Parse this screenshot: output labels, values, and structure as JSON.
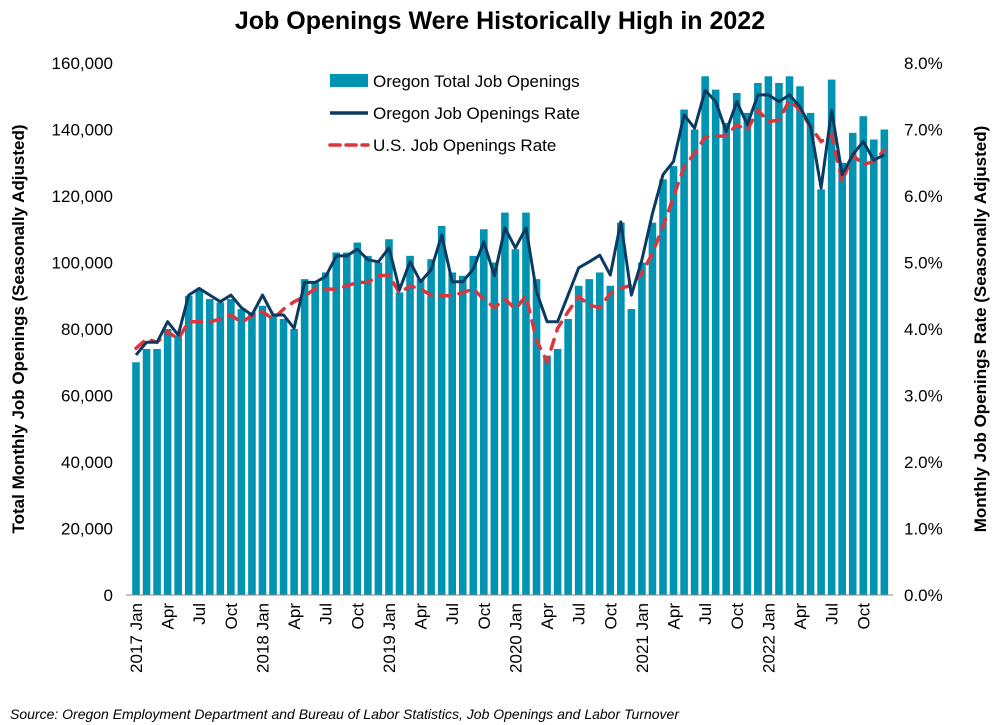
{
  "chart_data": {
    "type": "bar+line",
    "title": "Job Openings Were Historically High in 2022",
    "ylabel_left": "Total Monthly Job Openings (Seasonally Adjusted)",
    "ylabel_right": "Monthly Job Openings Rate (Seasonally Adjusted)",
    "ylim_left": [
      0,
      160000
    ],
    "ylim_right": [
      0,
      8
    ],
    "yticks_left": [
      "0",
      "20,000",
      "40,000",
      "60,000",
      "80,000",
      "100,000",
      "120,000",
      "140,000",
      "160,000"
    ],
    "yticks_right": [
      "0.0%",
      "1.0%",
      "2.0%",
      "3.0%",
      "4.0%",
      "5.0%",
      "6.0%",
      "7.0%",
      "8.0%"
    ],
    "xtick_labels": [
      "2017 Jan",
      "Apr",
      "Jul",
      "Oct",
      "2018 Jan",
      "Apr",
      "Jul",
      "Oct",
      "2019 Jan",
      "Apr",
      "Jul",
      "Oct",
      "2020 Jan",
      "Apr",
      "Jul",
      "Oct",
      "2021 Jan",
      "Apr",
      "Jul",
      "Oct",
      "2022 Jan",
      "Apr",
      "Jul",
      "Oct"
    ],
    "legend": "top-center",
    "grid": false,
    "colors": {
      "bars": "#0093b2",
      "oregon_rate": "#0b3a63",
      "us_rate": "#d9363e"
    },
    "series": [
      {
        "name": "Oregon Total Job Openings",
        "type": "bar",
        "axis": "left",
        "values": [
          70000,
          74000,
          74000,
          80000,
          78000,
          90000,
          92000,
          89000,
          88000,
          89000,
          86000,
          85000,
          87000,
          84000,
          83000,
          80000,
          95000,
          94000,
          97000,
          103000,
          103000,
          106000,
          102000,
          100000,
          107000,
          91000,
          102000,
          95000,
          101000,
          111000,
          97000,
          96000,
          102000,
          110000,
          100000,
          115000,
          104000,
          115000,
          95000,
          72000,
          74000,
          83000,
          93000,
          95000,
          97000,
          93000,
          112000,
          86000,
          100000,
          112000,
          125000,
          129000,
          146000,
          140000,
          156000,
          152000,
          142000,
          151000,
          145000,
          154000,
          156000,
          154000,
          156000,
          153000,
          145000,
          122000,
          155000,
          130000,
          139000,
          144000,
          137000,
          140000
        ]
      },
      {
        "name": "Oregon Job Openings Rate",
        "type": "line",
        "axis": "right",
        "values": [
          3.61,
          3.8,
          3.8,
          4.11,
          3.91,
          4.51,
          4.61,
          4.51,
          4.41,
          4.51,
          4.32,
          4.21,
          4.51,
          4.21,
          4.21,
          4.01,
          4.7,
          4.7,
          4.79,
          5.1,
          5.1,
          5.2,
          5.04,
          5.01,
          5.22,
          4.59,
          5.01,
          4.71,
          4.89,
          5.41,
          4.71,
          4.71,
          4.9,
          5.31,
          4.8,
          5.52,
          5.22,
          5.52,
          4.56,
          4.11,
          4.11,
          4.51,
          4.92,
          5.01,
          5.11,
          4.81,
          5.61,
          4.51,
          5.04,
          5.74,
          6.32,
          6.52,
          7.22,
          7.02,
          7.59,
          7.42,
          6.97,
          7.42,
          7.07,
          7.52,
          7.52,
          7.42,
          7.52,
          7.34,
          7.04,
          6.12,
          7.29,
          6.32,
          6.62,
          6.82,
          6.54,
          6.62
        ]
      },
      {
        "name": "U.S. Job Openings Rate",
        "type": "line",
        "dashed": true,
        "axis": "right",
        "values": [
          3.71,
          3.85,
          3.8,
          3.96,
          3.85,
          4.11,
          4.11,
          4.11,
          4.15,
          4.21,
          4.1,
          4.2,
          4.26,
          4.15,
          4.3,
          4.41,
          4.49,
          4.61,
          4.6,
          4.6,
          4.65,
          4.7,
          4.7,
          4.8,
          4.81,
          4.54,
          4.65,
          4.6,
          4.51,
          4.5,
          4.5,
          4.55,
          4.6,
          4.45,
          4.32,
          4.45,
          4.3,
          4.5,
          3.83,
          3.51,
          4.01,
          4.26,
          4.49,
          4.36,
          4.32,
          4.54,
          4.61,
          4.66,
          4.84,
          5.14,
          5.54,
          5.99,
          6.44,
          6.64,
          6.89,
          6.9,
          6.9,
          7.07,
          6.99,
          7.29,
          7.12,
          7.14,
          7.44,
          7.29,
          7.04,
          6.82,
          6.92,
          6.22,
          6.62,
          6.47,
          6.52,
          6.69
        ]
      }
    ],
    "source": "Source: Oregon Employment Department and Bureau of Labor Statistics, Job Openings and Labor Turnover"
  }
}
